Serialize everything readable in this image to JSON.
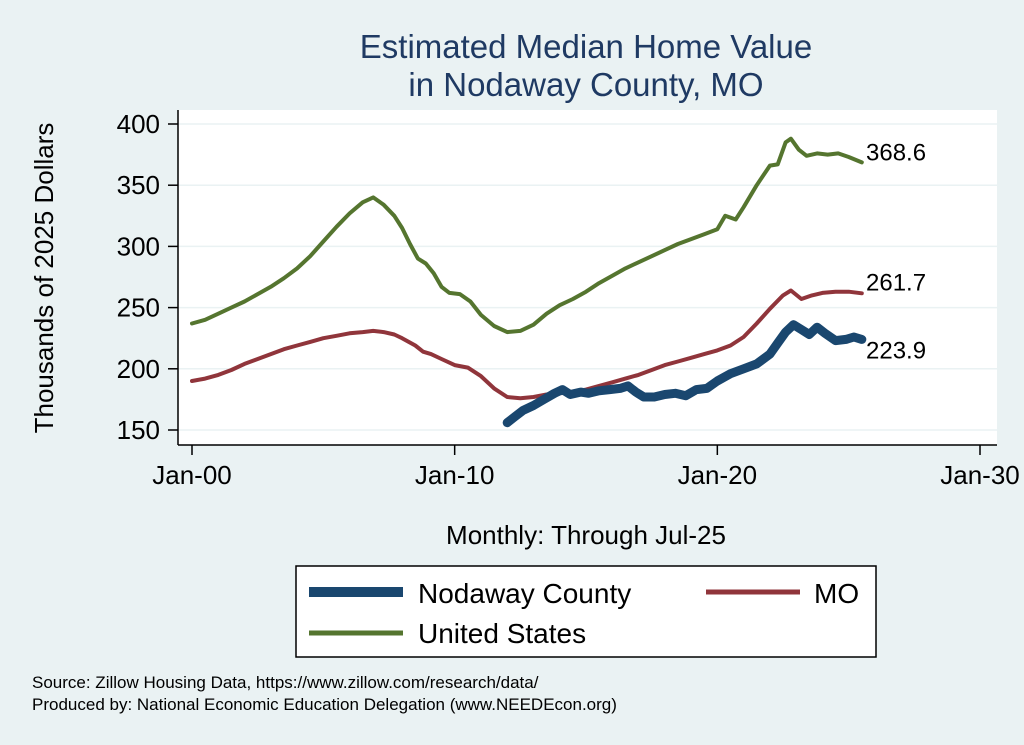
{
  "chart_data": {
    "type": "line",
    "title": [
      "Estimated Median Home Value",
      "in Nodaway County, MO"
    ],
    "ylabel": "Thousands of 2025 Dollars",
    "xlabel": "Monthly: Through Jul-25",
    "ylim": [
      150,
      400
    ],
    "yticks": [
      150,
      200,
      250,
      300,
      350,
      400
    ],
    "xlim": [
      2000,
      2030
    ],
    "xticks": [
      {
        "value": 2000,
        "label": "Jan-00"
      },
      {
        "value": 2010,
        "label": "Jan-10"
      },
      {
        "value": 2020,
        "label": "Jan-20"
      },
      {
        "value": 2030,
        "label": "Jan-30"
      }
    ],
    "series": [
      {
        "name": "Nodaway County",
        "color": "#1a476f",
        "end_label": "223.9",
        "points": [
          [
            2012.0,
            156
          ],
          [
            2012.3,
            161
          ],
          [
            2012.6,
            166
          ],
          [
            2013.0,
            170
          ],
          [
            2013.4,
            175
          ],
          [
            2013.8,
            180
          ],
          [
            2014.1,
            183
          ],
          [
            2014.4,
            179
          ],
          [
            2014.8,
            181
          ],
          [
            2015.1,
            180
          ],
          [
            2015.5,
            182
          ],
          [
            2015.9,
            183
          ],
          [
            2016.3,
            184
          ],
          [
            2016.6,
            186
          ],
          [
            2016.9,
            181
          ],
          [
            2017.2,
            177
          ],
          [
            2017.6,
            177
          ],
          [
            2018.0,
            179
          ],
          [
            2018.4,
            180
          ],
          [
            2018.8,
            178
          ],
          [
            2019.2,
            183
          ],
          [
            2019.6,
            184
          ],
          [
            2020.0,
            190
          ],
          [
            2020.5,
            196
          ],
          [
            2021.0,
            200
          ],
          [
            2021.5,
            204
          ],
          [
            2022.0,
            212
          ],
          [
            2022.3,
            221
          ],
          [
            2022.6,
            230
          ],
          [
            2022.9,
            236
          ],
          [
            2023.2,
            232
          ],
          [
            2023.5,
            228
          ],
          [
            2023.8,
            234
          ],
          [
            2024.1,
            229
          ],
          [
            2024.5,
            223
          ],
          [
            2024.9,
            224
          ],
          [
            2025.2,
            226
          ],
          [
            2025.5,
            224
          ]
        ]
      },
      {
        "name": "MO",
        "color": "#90353b",
        "end_label": "261.7",
        "points": [
          [
            2000.0,
            190
          ],
          [
            2000.5,
            192
          ],
          [
            2001.0,
            195
          ],
          [
            2001.5,
            199
          ],
          [
            2002.0,
            204
          ],
          [
            2002.5,
            208
          ],
          [
            2003.0,
            212
          ],
          [
            2003.5,
            216
          ],
          [
            2004.0,
            219
          ],
          [
            2004.5,
            222
          ],
          [
            2005.0,
            225
          ],
          [
            2005.5,
            227
          ],
          [
            2006.0,
            229
          ],
          [
            2006.5,
            230
          ],
          [
            2006.9,
            231
          ],
          [
            2007.3,
            230
          ],
          [
            2007.7,
            228
          ],
          [
            2008.0,
            225
          ],
          [
            2008.5,
            219
          ],
          [
            2008.8,
            214
          ],
          [
            2009.1,
            212
          ],
          [
            2009.5,
            208
          ],
          [
            2010.0,
            203
          ],
          [
            2010.5,
            201
          ],
          [
            2011.0,
            194
          ],
          [
            2011.5,
            184
          ],
          [
            2012.0,
            177
          ],
          [
            2012.5,
            176
          ],
          [
            2013.0,
            177
          ],
          [
            2013.5,
            179
          ],
          [
            2014.0,
            180
          ],
          [
            2014.5,
            181
          ],
          [
            2015.0,
            183
          ],
          [
            2015.5,
            186
          ],
          [
            2016.0,
            189
          ],
          [
            2016.5,
            192
          ],
          [
            2017.0,
            195
          ],
          [
            2017.5,
            199
          ],
          [
            2018.0,
            203
          ],
          [
            2018.5,
            206
          ],
          [
            2019.0,
            209
          ],
          [
            2019.5,
            212
          ],
          [
            2020.0,
            215
          ],
          [
            2020.5,
            219
          ],
          [
            2021.0,
            226
          ],
          [
            2021.5,
            237
          ],
          [
            2022.0,
            249
          ],
          [
            2022.5,
            260
          ],
          [
            2022.8,
            264
          ],
          [
            2023.2,
            257
          ],
          [
            2023.6,
            260
          ],
          [
            2024.0,
            262
          ],
          [
            2024.5,
            263
          ],
          [
            2025.0,
            263
          ],
          [
            2025.5,
            261.7
          ]
        ]
      },
      {
        "name": "United States",
        "color": "#55752f",
        "end_label": "368.6",
        "points": [
          [
            2000.0,
            237
          ],
          [
            2000.5,
            240
          ],
          [
            2001.0,
            245
          ],
          [
            2001.5,
            250
          ],
          [
            2002.0,
            255
          ],
          [
            2002.5,
            261
          ],
          [
            2003.0,
            267
          ],
          [
            2003.5,
            274
          ],
          [
            2004.0,
            282
          ],
          [
            2004.5,
            292
          ],
          [
            2005.0,
            304
          ],
          [
            2005.5,
            316
          ],
          [
            2006.0,
            327
          ],
          [
            2006.5,
            336
          ],
          [
            2006.9,
            340
          ],
          [
            2007.3,
            334
          ],
          [
            2007.7,
            325
          ],
          [
            2008.0,
            315
          ],
          [
            2008.3,
            302
          ],
          [
            2008.6,
            290
          ],
          [
            2008.9,
            286
          ],
          [
            2009.2,
            278
          ],
          [
            2009.5,
            267
          ],
          [
            2009.8,
            262
          ],
          [
            2010.2,
            261
          ],
          [
            2010.6,
            255
          ],
          [
            2011.0,
            244
          ],
          [
            2011.5,
            235
          ],
          [
            2012.0,
            230
          ],
          [
            2012.5,
            231
          ],
          [
            2013.0,
            236
          ],
          [
            2013.5,
            245
          ],
          [
            2014.0,
            252
          ],
          [
            2014.5,
            257
          ],
          [
            2015.0,
            263
          ],
          [
            2015.5,
            270
          ],
          [
            2016.0,
            276
          ],
          [
            2016.5,
            282
          ],
          [
            2017.0,
            287
          ],
          [
            2017.5,
            292
          ],
          [
            2018.0,
            297
          ],
          [
            2018.5,
            302
          ],
          [
            2019.0,
            306
          ],
          [
            2019.5,
            310
          ],
          [
            2020.0,
            314
          ],
          [
            2020.3,
            325
          ],
          [
            2020.7,
            322
          ],
          [
            2021.0,
            332
          ],
          [
            2021.5,
            350
          ],
          [
            2022.0,
            366
          ],
          [
            2022.3,
            367
          ],
          [
            2022.6,
            385
          ],
          [
            2022.8,
            388
          ],
          [
            2023.1,
            379
          ],
          [
            2023.4,
            374
          ],
          [
            2023.8,
            376
          ],
          [
            2024.2,
            375
          ],
          [
            2024.6,
            376
          ],
          [
            2025.0,
            373
          ],
          [
            2025.5,
            368.6
          ]
        ]
      }
    ],
    "legend": [
      {
        "name": "Nodaway County"
      },
      {
        "name": "MO"
      },
      {
        "name": "United States"
      }
    ]
  },
  "notes": {
    "source": "Source: Zillow Housing Data, https://www.zillow.com/research/data/",
    "produced": "Produced by: National Economic Education Delegation (www.NEEDEcon.org)"
  }
}
